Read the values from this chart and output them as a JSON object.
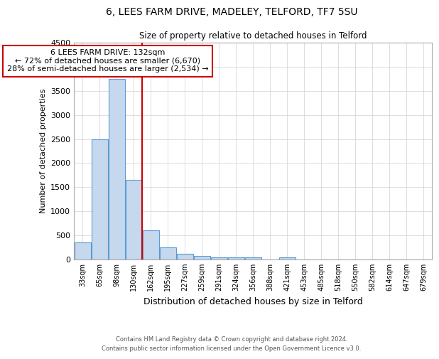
{
  "title1": "6, LEES FARM DRIVE, MADELEY, TELFORD, TF7 5SU",
  "title2": "Size of property relative to detached houses in Telford",
  "xlabel": "Distribution of detached houses by size in Telford",
  "ylabel": "Number of detached properties",
  "bar_labels": [
    "33sqm",
    "65sqm",
    "98sqm",
    "130sqm",
    "162sqm",
    "195sqm",
    "227sqm",
    "259sqm",
    "291sqm",
    "324sqm",
    "356sqm",
    "388sqm",
    "421sqm",
    "453sqm",
    "485sqm",
    "518sqm",
    "550sqm",
    "582sqm",
    "614sqm",
    "647sqm",
    "679sqm"
  ],
  "bar_values": [
    350,
    2500,
    3750,
    1650,
    600,
    250,
    120,
    70,
    50,
    50,
    50,
    0,
    50,
    0,
    0,
    0,
    0,
    0,
    0,
    0,
    0
  ],
  "bar_color": "#c5d8ee",
  "bar_edge_color": "#5b9bd5",
  "ylim": [
    0,
    4500
  ],
  "yticks": [
    0,
    500,
    1000,
    1500,
    2000,
    2500,
    3000,
    3500,
    4000,
    4500
  ],
  "red_line_color": "#cc0000",
  "annotation_title": "6 LEES FARM DRIVE: 132sqm",
  "annotation_line1": "← 72% of detached houses are smaller (6,670)",
  "annotation_line2": "28% of semi-detached houses are larger (2,534) →",
  "annotation_box_color": "#ffffff",
  "annotation_box_edge": "#cc0000",
  "footer1": "Contains HM Land Registry data © Crown copyright and database right 2024.",
  "footer2": "Contains public sector information licensed under the Open Government Licence v3.0.",
  "background_color": "#ffffff",
  "grid_color": "#d0d0d0"
}
